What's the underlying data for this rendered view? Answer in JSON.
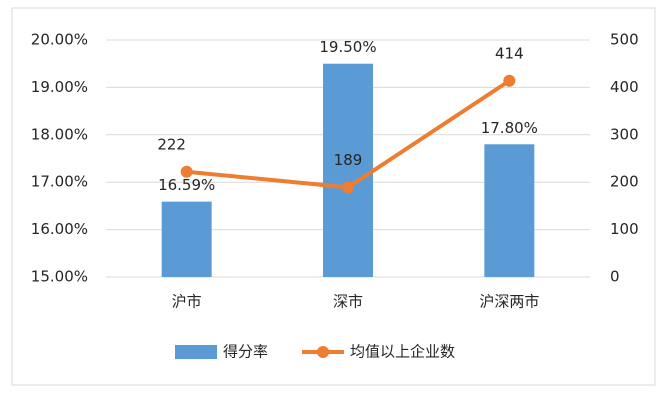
{
  "chart_data": {
    "type": "combo",
    "categories": [
      "沪市",
      "深市",
      "沪深两市"
    ],
    "series": [
      {
        "name": "得分率",
        "type": "bar",
        "color": "#5b9bd5",
        "values": [
          16.59,
          19.5,
          17.8
        ],
        "value_labels": [
          "16.59%",
          "19.50%",
          "17.80%"
        ]
      },
      {
        "name": "均值以上企业数",
        "type": "line",
        "axis": "y2",
        "color": "#ed7d31",
        "values": [
          222,
          189,
          414
        ]
      }
    ],
    "ylim": [
      15,
      20
    ],
    "yticks": [
      {
        "value": 15,
        "label": "15.00%"
      },
      {
        "value": 16,
        "label": "16.00%"
      },
      {
        "value": 17,
        "label": "17.00%"
      },
      {
        "value": 18,
        "label": "18.00%"
      },
      {
        "value": 19,
        "label": "19.00%"
      },
      {
        "value": 20,
        "label": "20.00%"
      }
    ],
    "y2lim": [
      0,
      500
    ],
    "y2ticks": [
      0,
      100,
      200,
      300,
      400,
      500
    ],
    "grid": true
  }
}
